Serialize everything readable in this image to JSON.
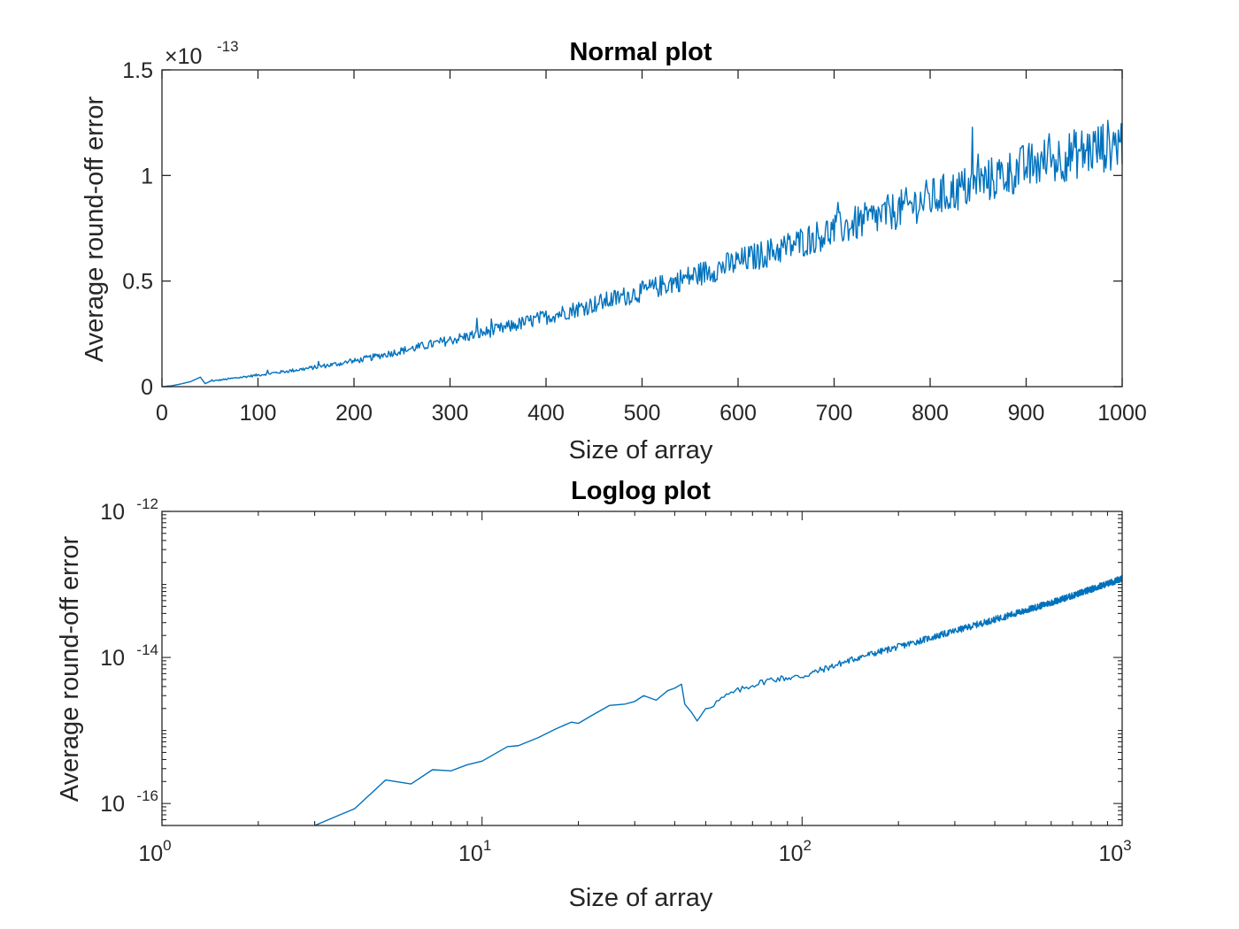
{
  "chart_data": [
    {
      "type": "line",
      "title": "Normal plot",
      "xlabel": "Size of array",
      "ylabel": "Average round-off error",
      "xscale": "linear",
      "yscale": "linear",
      "xlim": [
        0,
        1000
      ],
      "ylim": [
        0,
        1.5e-13
      ],
      "y_multiplier_label": "×10",
      "y_multiplier_exponent": "-13",
      "xticks": [
        "0",
        "100",
        "200",
        "300",
        "400",
        "500",
        "600",
        "700",
        "800",
        "900",
        "1000"
      ],
      "yticks": [
        "0",
        "0.5",
        "1",
        "1.5"
      ],
      "grid": false,
      "series_color": "#0072BD",
      "series": [
        {
          "description": "noisy roughly quadratic growth; y ≈ 1.15e-13·(x/1000)^1.5 with multiplicative noise",
          "x": [
            1,
            3,
            5,
            10,
            20,
            30,
            40,
            45,
            50,
            100,
            150,
            200,
            250,
            300,
            350,
            400,
            450,
            500,
            550,
            600,
            650,
            700,
            750,
            800,
            850,
            900,
            950,
            1000
          ],
          "y": [
            1e-17,
            8e-17,
            2.3e-16,
            4e-16,
            1.3e-15,
            2.4e-15,
            4.5e-15,
            1.4e-15,
            2.5e-15,
            5.5e-15,
            8.5e-15,
            1.2e-14,
            1.7e-14,
            2.2e-14,
            2.7e-14,
            3.3e-14,
            3.9e-14,
            4.5e-14,
            5.2e-14,
            5.9e-14,
            6.6e-14,
            7.4e-14,
            8.1e-14,
            8.9e-14,
            9.6e-14,
            1.04e-13,
            1.1e-13,
            1.16e-13
          ]
        }
      ]
    },
    {
      "type": "line",
      "title": "Loglog plot",
      "xlabel": "Size of array",
      "ylabel": "Average round-off error",
      "xscale": "log",
      "yscale": "log",
      "xlim": [
        1,
        1000
      ],
      "ylim": [
        5e-17,
        1e-12
      ],
      "xticks": [
        {
          "base": "10",
          "exp": "0"
        },
        {
          "base": "10",
          "exp": "1"
        },
        {
          "base": "10",
          "exp": "2"
        },
        {
          "base": "10",
          "exp": "3"
        }
      ],
      "yticks": [
        {
          "base": "10",
          "exp": "-16"
        },
        {
          "base": "10",
          "exp": "-14"
        },
        {
          "base": "10",
          "exp": "-12"
        }
      ],
      "grid": false,
      "series_color": "#0072BD",
      "series": [
        {
          "x": [
            3,
            4,
            5,
            6,
            7,
            8,
            9,
            10,
            12,
            13,
            15,
            17,
            19,
            20,
            22,
            25,
            28,
            30,
            32,
            35,
            38,
            40,
            42,
            43,
            45,
            47,
            50,
            60,
            70,
            80,
            100,
            150,
            200,
            300,
            500,
            700,
            1000
          ],
          "y": [
            5e-17,
            8.5e-17,
            2.1e-16,
            1.85e-16,
            2.9e-16,
            2.8e-16,
            3.4e-16,
            3.8e-16,
            6e-16,
            6.2e-16,
            8e-16,
            1.05e-15,
            1.3e-15,
            1.25e-15,
            1.6e-15,
            2.2e-15,
            2.3e-15,
            2.5e-15,
            3e-15,
            2.6e-15,
            3.5e-15,
            3.8e-15,
            4.3e-15,
            2.3e-15,
            1.8e-15,
            1.35e-15,
            2e-15,
            3.2e-15,
            4.2e-15,
            5e-15,
            5.5e-15,
            1e-14,
            1.4e-14,
            2.3e-14,
            4.4e-14,
            7e-14,
            1.2e-13
          ]
        }
      ]
    }
  ]
}
